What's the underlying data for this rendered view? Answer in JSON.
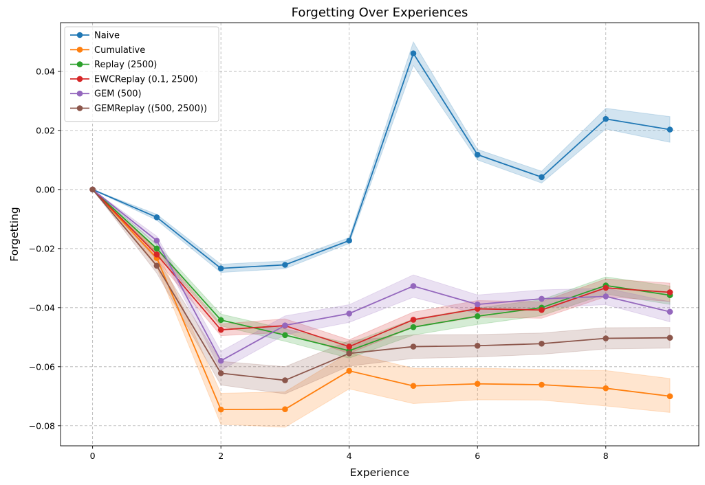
{
  "chart_data": {
    "type": "line",
    "title": "Forgetting Over Experiences",
    "xlabel": "Experience",
    "ylabel": "Forgetting",
    "x": [
      0,
      1,
      2,
      3,
      4,
      5,
      6,
      7,
      8,
      9
    ],
    "xlim": [
      -0.5,
      9.45
    ],
    "ylim": [
      -0.0868,
      0.0565
    ],
    "xticks": [
      0,
      2,
      4,
      6,
      8
    ],
    "xtick_labels": [
      "0",
      "2",
      "4",
      "6",
      "8"
    ],
    "yticks": [
      -0.08,
      -0.06,
      -0.04,
      -0.02,
      0.0,
      0.02,
      0.04
    ],
    "ytick_labels": [
      "−0.08",
      "−0.06",
      "−0.04",
      "−0.02",
      "0.00",
      "0.02",
      "0.04"
    ],
    "grid": true,
    "legend_position": "top-left",
    "series": [
      {
        "name": "Naive",
        "color": "#1f77b4",
        "values": [
          0.0,
          -0.0094,
          -0.0267,
          -0.0255,
          -0.0173,
          0.0461,
          0.0118,
          0.0042,
          0.0239,
          0.0203
        ],
        "lower": [
          0.0,
          -0.0104,
          -0.0281,
          -0.0268,
          -0.0183,
          0.042,
          0.01,
          0.0022,
          0.0205,
          0.016
        ],
        "upper": [
          0.0,
          -0.0084,
          -0.0253,
          -0.0242,
          -0.0163,
          0.05,
          0.0136,
          0.0062,
          0.0275,
          0.0247
        ]
      },
      {
        "name": "Cumulative",
        "color": "#ff7f0e",
        "values": [
          0.0,
          -0.0232,
          -0.0745,
          -0.0744,
          -0.0614,
          -0.0665,
          -0.0658,
          -0.0661,
          -0.0673,
          -0.07
        ],
        "lower": [
          0.0,
          -0.0262,
          -0.0795,
          -0.0805,
          -0.0675,
          -0.0725,
          -0.0712,
          -0.0713,
          -0.0733,
          -0.0755
        ],
        "upper": [
          0.0,
          -0.0202,
          -0.069,
          -0.0685,
          -0.0553,
          -0.0605,
          -0.0605,
          -0.0609,
          -0.0613,
          -0.064
        ]
      },
      {
        "name": "Replay (2500)",
        "color": "#2ca02c",
        "values": [
          0.0,
          -0.02,
          -0.0442,
          -0.0493,
          -0.0546,
          -0.0466,
          -0.0429,
          -0.04,
          -0.0325,
          -0.0358
        ],
        "lower": [
          0.0,
          -0.0215,
          -0.0462,
          -0.0514,
          -0.0571,
          -0.0493,
          -0.0457,
          -0.0427,
          -0.0354,
          -0.0389
        ],
        "upper": [
          0.0,
          -0.0185,
          -0.0422,
          -0.0472,
          -0.0521,
          -0.0439,
          -0.0401,
          -0.0373,
          -0.0296,
          -0.0327
        ]
      },
      {
        "name": "EWCReplay (0.1, 2500)",
        "color": "#d62728",
        "values": [
          0.0,
          -0.022,
          -0.0475,
          -0.0461,
          -0.0532,
          -0.0441,
          -0.0404,
          -0.0408,
          -0.0333,
          -0.0348
        ],
        "lower": [
          0.0,
          -0.0238,
          -0.0495,
          -0.0484,
          -0.0555,
          -0.0467,
          -0.0432,
          -0.0436,
          -0.0363,
          -0.0379
        ],
        "upper": [
          0.0,
          -0.0202,
          -0.0455,
          -0.0438,
          -0.0509,
          -0.0415,
          -0.0376,
          -0.038,
          -0.0303,
          -0.0317
        ]
      },
      {
        "name": "GEM (500)",
        "color": "#9467bd",
        "values": [
          0.0,
          -0.0173,
          -0.058,
          -0.046,
          -0.042,
          -0.0327,
          -0.0389,
          -0.037,
          -0.0362,
          -0.0414
        ],
        "lower": [
          0.0,
          -0.0188,
          -0.0612,
          -0.0492,
          -0.045,
          -0.0365,
          -0.0421,
          -0.04,
          -0.039,
          -0.0448
        ],
        "upper": [
          0.0,
          -0.0158,
          -0.0548,
          -0.0428,
          -0.039,
          -0.0289,
          -0.0357,
          -0.034,
          -0.0334,
          -0.038
        ]
      },
      {
        "name": "GEMReplay ((500, 2500))",
        "color": "#8c564b",
        "values": [
          0.0,
          -0.0258,
          -0.0622,
          -0.0646,
          -0.0555,
          -0.0532,
          -0.0529,
          -0.0522,
          -0.0504,
          -0.0502
        ],
        "lower": [
          0.0,
          -0.0283,
          -0.0662,
          -0.0692,
          -0.0598,
          -0.0572,
          -0.0567,
          -0.0558,
          -0.054,
          -0.0537
        ],
        "upper": [
          0.0,
          -0.0233,
          -0.0582,
          -0.06,
          -0.0512,
          -0.0492,
          -0.0491,
          -0.0486,
          -0.0468,
          -0.0467
        ]
      }
    ]
  }
}
